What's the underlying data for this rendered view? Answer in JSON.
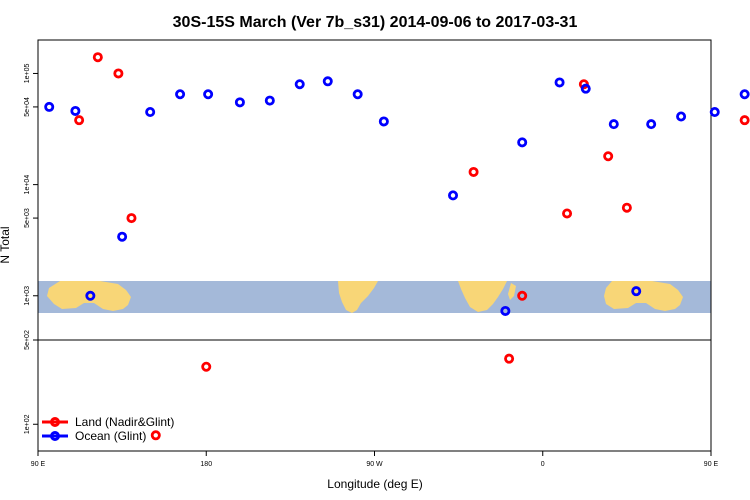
{
  "chart_data": {
    "type": "scatter",
    "title": "30S-15S March (Ver 7b_s31)   2014-09-06 to 2017-03-31",
    "xlabel": "Longitude (deg E)",
    "ylabel": "N Total",
    "x_axis": {
      "range_deg_east": [
        90,
        450
      ],
      "ticks": [
        {
          "value": 90,
          "label": "90 E"
        },
        {
          "value": 180,
          "label": "180"
        },
        {
          "value": 270,
          "label": "90 W"
        },
        {
          "value": 360,
          "label": "0"
        },
        {
          "value": 450,
          "label": "90 E"
        },
        {
          "value": 540,
          "label": "180"
        }
      ]
    },
    "y_axis_upper": {
      "scale": "log",
      "range": [
        400,
        200000
      ],
      "ticks": [
        {
          "value": 1000,
          "label": "1e+03"
        },
        {
          "value": 5000,
          "label": "5e+03"
        },
        {
          "value": 10000,
          "label": "1e+04"
        },
        {
          "value": 50000,
          "label": "5e+04"
        },
        {
          "value": 100000,
          "label": "1e+05"
        }
      ]
    },
    "y_axis_lower": {
      "scale": "log",
      "range": [
        60,
        500
      ],
      "ticks": [
        {
          "value": 100,
          "label": "1e+02"
        },
        {
          "value": 500,
          "label": "5e+02"
        }
      ]
    },
    "legend": {
      "position": "bottom-left",
      "entries": [
        {
          "label": "Land (Nadir&Glint)",
          "color": "#ff0000"
        },
        {
          "label": "Ocean (Glint)",
          "color": "#0000ff"
        }
      ]
    },
    "series": [
      {
        "name": "Land (Nadir&Glint)",
        "color": "#ff0000",
        "points": [
          {
            "lon": 112,
            "n": 38000
          },
          {
            "lon": 122,
            "n": 140000
          },
          {
            "lon": 133,
            "n": 100000
          },
          {
            "lon": 140,
            "n": 5000
          },
          {
            "lon": 323,
            "n": 13000
          },
          {
            "lon": 349,
            "n": 1000
          },
          {
            "lon": 373,
            "n": 5500
          },
          {
            "lon": 382,
            "n": 80000
          },
          {
            "lon": 395,
            "n": 18000
          },
          {
            "lon": 405,
            "n": 6200
          },
          {
            "lon": 468,
            "n": 38000
          },
          {
            "lon": 478,
            "n": 140000
          },
          {
            "lon": 493,
            "n": 100000
          },
          {
            "lon": 500,
            "n": 5000
          },
          {
            "lon": 180,
            "n": 300
          },
          {
            "lon": 342,
            "n": 350
          },
          {
            "lon": 153,
            "n": 81
          },
          {
            "lon": 528,
            "n": 80
          }
        ]
      },
      {
        "name": "Ocean (Glint)",
        "color": "#0000ff",
        "points": [
          {
            "lon": 96,
            "n": 50000
          },
          {
            "lon": 110,
            "n": 46000
          },
          {
            "lon": 118,
            "n": 1000
          },
          {
            "lon": 135,
            "n": 3400
          },
          {
            "lon": 150,
            "n": 45000
          },
          {
            "lon": 166,
            "n": 65000
          },
          {
            "lon": 181,
            "n": 65000
          },
          {
            "lon": 198,
            "n": 55000
          },
          {
            "lon": 214,
            "n": 57000
          },
          {
            "lon": 230,
            "n": 80000
          },
          {
            "lon": 245,
            "n": 85000
          },
          {
            "lon": 261,
            "n": 65000
          },
          {
            "lon": 275,
            "n": 37000
          },
          {
            "lon": 312,
            "n": 8000
          },
          {
            "lon": 340,
            "n": 730
          },
          {
            "lon": 349,
            "n": 24000
          },
          {
            "lon": 369,
            "n": 83000
          },
          {
            "lon": 383,
            "n": 73000
          },
          {
            "lon": 398,
            "n": 35000
          },
          {
            "lon": 410,
            "n": 1100
          },
          {
            "lon": 418,
            "n": 35000
          },
          {
            "lon": 434,
            "n": 41000
          },
          {
            "lon": 452,
            "n": 45000
          },
          {
            "lon": 468,
            "n": 65000
          },
          {
            "lon": 486,
            "n": 48000
          },
          {
            "lon": 500,
            "n": 46000
          },
          {
            "lon": 478,
            "n": 1000
          },
          {
            "lon": 495,
            "n": 3400
          },
          {
            "lon": 510,
            "n": 45000
          },
          {
            "lon": 526,
            "n": 65000
          }
        ]
      }
    ]
  }
}
